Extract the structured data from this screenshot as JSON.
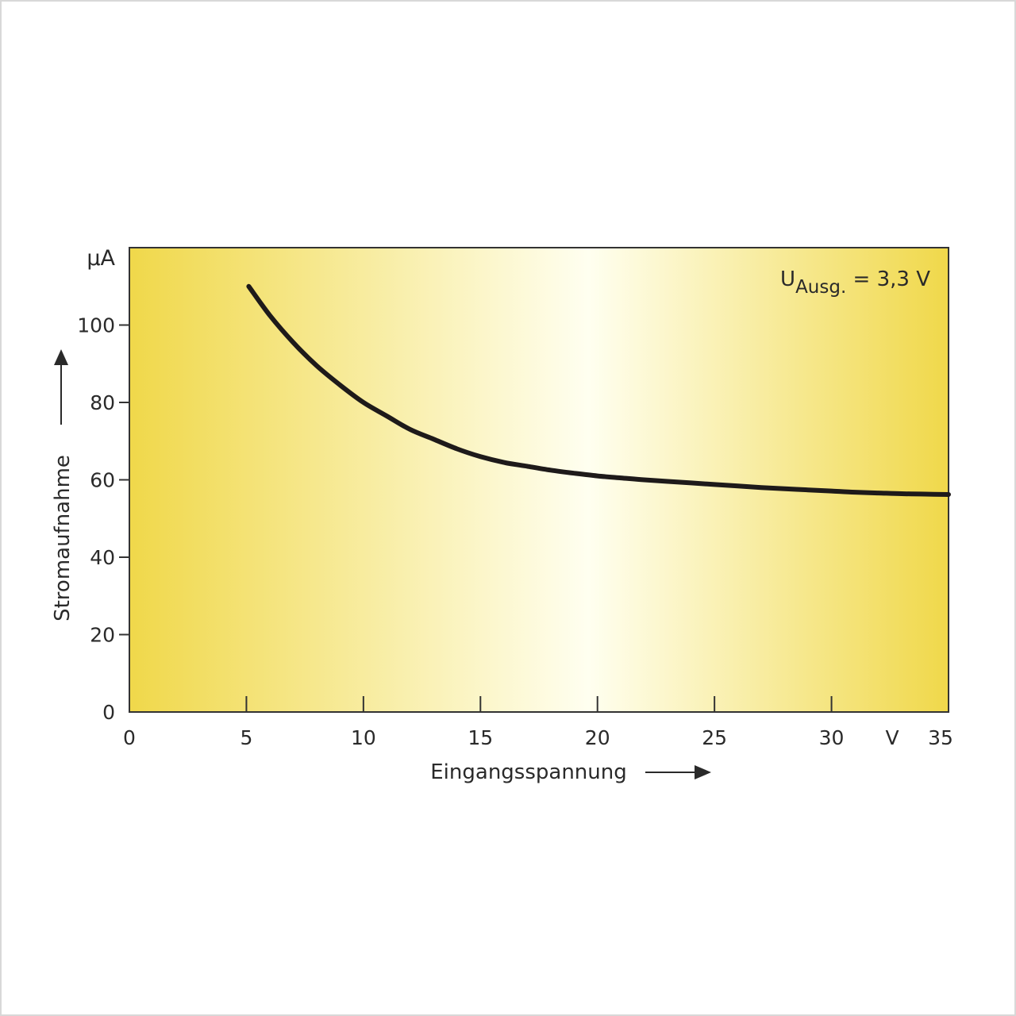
{
  "chart_data": {
    "type": "line",
    "title": "",
    "xlabel": "Eingangsspannung",
    "ylabel": "Stromaufnahme",
    "x_unit": "V",
    "y_unit": "µA",
    "xlim": [
      0,
      35
    ],
    "ylim": [
      0,
      120
    ],
    "x_ticks": [
      0,
      5,
      10,
      15,
      20,
      25,
      30,
      35
    ],
    "y_ticks": [
      0,
      20,
      40,
      60,
      80,
      100
    ],
    "grid": false,
    "legend": "none",
    "annotation": {
      "main": "U",
      "subscript": "Ausg.",
      "rest": " = 3,3 V",
      "position": "top-right"
    },
    "colors": {
      "line": "#1e1a1a",
      "background_edge": "#f0d84a",
      "background_center": "#fffff0",
      "axis": "#333333"
    },
    "series": [
      {
        "x": [
          5.1,
          6,
          7,
          8,
          9,
          10,
          11,
          12,
          13,
          14,
          15,
          16,
          17,
          18,
          19,
          20,
          21,
          22,
          23,
          24,
          25,
          26,
          27,
          28,
          29,
          30,
          31,
          32,
          33,
          34,
          35
        ],
        "y": [
          110,
          102.5,
          95.5,
          89.5,
          84.5,
          80,
          76.5,
          73,
          70.5,
          68,
          66,
          64.5,
          63.5,
          62.5,
          61.7,
          61,
          60.5,
          60,
          59.6,
          59.2,
          58.8,
          58.4,
          58,
          57.7,
          57.4,
          57.1,
          56.8,
          56.6,
          56.4,
          56.3,
          56.2
        ]
      }
    ]
  }
}
